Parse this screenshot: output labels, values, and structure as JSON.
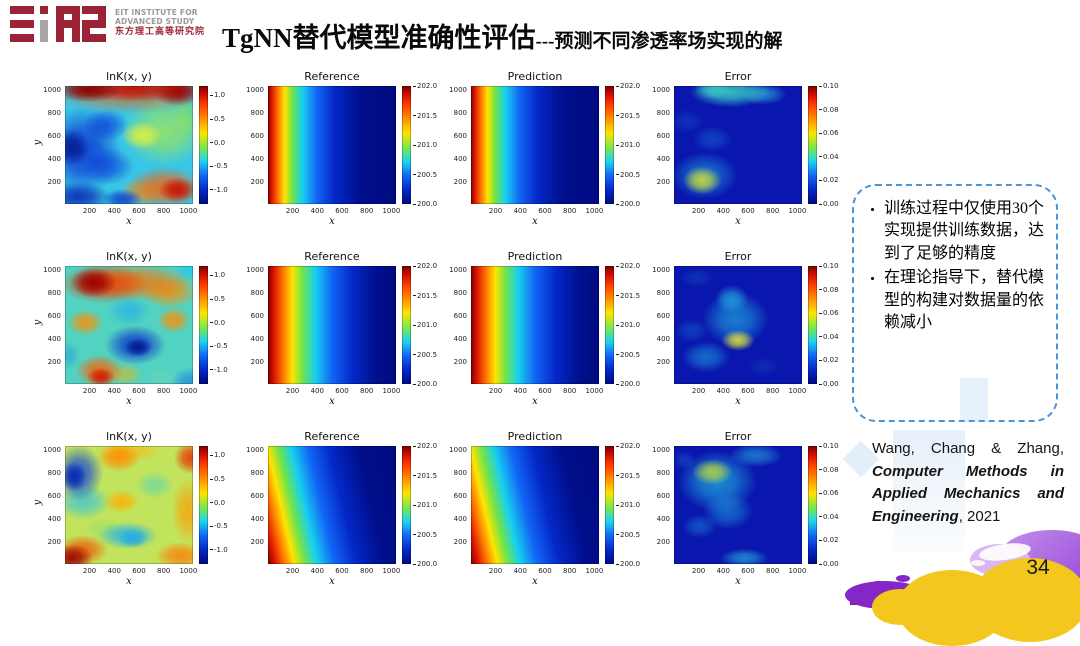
{
  "slide": {
    "logo": {
      "en_line1": "EIT INSTITUTE FOR",
      "en_line2": "ADVANCED STUDY",
      "cn": "东方理工高等研究院",
      "color_red": "#9b2335",
      "color_gray": "#9a9a9a"
    },
    "title": {
      "main": "TgNN替代模型准确性评估",
      "sub": "---预测不同渗透率场实现的解"
    },
    "notes": {
      "border_color": "#4a95d8",
      "bullets": [
        "训练过程中仅使用30个实现提供训练数据，达到了足够的精度",
        "在理论指导下，替代模型的构建对数据量的依赖减小"
      ]
    },
    "citation": {
      "authors": "Wang, Chang & Zhang,",
      "journal": "Computer Methods in Applied Mechanics and Engineering",
      "year": ", 2021"
    },
    "page_number": "34",
    "decoration_colors": {
      "cloud_yellow": "#f3c71d",
      "cloud_purple": "#9747d8",
      "wave_purple": "#8426c8"
    }
  },
  "chart_data": {
    "type": "heatmap",
    "grid": {
      "rows": 3,
      "cols": 4
    },
    "column_titles": [
      "lnK(x, y)",
      "Reference",
      "Prediction",
      "Error"
    ],
    "xlabel": "x",
    "ylabel": "y",
    "x_ticks": [
      200,
      400,
      600,
      800,
      1000
    ],
    "y_ticks": [
      1000,
      800,
      600,
      400,
      200
    ],
    "axis_range": [
      0,
      1024
    ],
    "colorbars": {
      "lnk": {
        "labels": [
          "1.0",
          "0.5",
          "0.0",
          "-0.5",
          "-1.0"
        ],
        "pos": [
          8,
          28,
          48,
          68,
          88
        ]
      },
      "pressure": {
        "labels": [
          "202.0",
          "201.5",
          "201.0",
          "200.5",
          "200.0"
        ],
        "pos": [
          0,
          25,
          50,
          75,
          100
        ]
      },
      "error": {
        "labels": [
          "0.10",
          "0.08",
          "0.06",
          "0.04",
          "0.02",
          "0.00"
        ],
        "pos": [
          0,
          20,
          40,
          60,
          80,
          100
        ]
      }
    },
    "gradients": {
      "p1": {
        "angle": 90,
        "stops": [
          [
            "#7a0000",
            0
          ],
          [
            "#e01800",
            3
          ],
          [
            "#ff7a00",
            8
          ],
          [
            "#ffe400",
            13
          ],
          [
            "#6fe44a",
            19
          ],
          [
            "#17d0f0",
            27
          ],
          [
            "#1266f5",
            38
          ],
          [
            "#0428c8",
            52
          ],
          [
            "#000f8c",
            72
          ],
          [
            "#000a80",
            100
          ]
        ]
      },
      "p2": {
        "angle": 90,
        "stops": [
          [
            "#7a0000",
            0
          ],
          [
            "#e01800",
            5
          ],
          [
            "#ff7a00",
            12
          ],
          [
            "#ffe400",
            19
          ],
          [
            "#6fe44a",
            27
          ],
          [
            "#17d0f0",
            37
          ],
          [
            "#1266f5",
            50
          ],
          [
            "#0428c8",
            66
          ],
          [
            "#000f8c",
            85
          ],
          [
            "#000a80",
            100
          ]
        ]
      },
      "p3": {
        "angle": 77,
        "stops": [
          [
            "#7a0000",
            0
          ],
          [
            "#e01800",
            5
          ],
          [
            "#ff7a00",
            11
          ],
          [
            "#ffe400",
            17
          ],
          [
            "#6fe44a",
            24
          ],
          [
            "#17d0f0",
            32
          ],
          [
            "#1266f5",
            43
          ],
          [
            "#0428c8",
            57
          ],
          [
            "#000f8c",
            75
          ],
          [
            "#000a80",
            100
          ]
        ]
      }
    },
    "panels": [
      {
        "row": 0,
        "col": 0,
        "title": "lnK(x, y)",
        "cbar": "lnk",
        "field": {
          "base": "#38c6e6",
          "blobs": [
            [
              18,
              3,
              26,
              11,
              "#8f0000",
              1
            ],
            [
              55,
              2,
              45,
              12,
              "#c41000",
              0.95
            ],
            [
              88,
              4,
              20,
              13,
              "#9a0000",
              1
            ],
            [
              50,
              8,
              60,
              16,
              "#ff5a00",
              0.55
            ],
            [
              60,
              42,
              16,
              12,
              "#e6f23c",
              0.85
            ],
            [
              78,
              38,
              34,
              30,
              "#a8e84e",
              0.75
            ],
            [
              95,
              25,
              12,
              18,
              "#7ddc55",
              0.6
            ],
            [
              5,
              52,
              14,
              16,
              "#041a8a",
              0.9
            ],
            [
              14,
              55,
              30,
              38,
              "#0a2ed2",
              0.85
            ],
            [
              32,
              33,
              18,
              14,
              "#0f42dc",
              0.75
            ],
            [
              34,
              68,
              20,
              16,
              "#0f42dc",
              0.7
            ],
            [
              10,
              94,
              26,
              13,
              "#0a28b4",
              0.9
            ],
            [
              45,
              96,
              16,
              9,
              "#0c30c8",
              0.8
            ],
            [
              88,
              88,
              15,
              11,
              "#c81200",
              0.95
            ],
            [
              78,
              86,
              30,
              18,
              "#ff5f00",
              0.8
            ],
            [
              60,
              90,
              18,
              12,
              "#ff9a00",
              0.55
            ]
          ]
        }
      },
      {
        "row": 0,
        "col": 1,
        "title": "Reference",
        "cbar": "pressure",
        "field": {
          "grad": "p1"
        }
      },
      {
        "row": 0,
        "col": 2,
        "title": "Prediction",
        "cbar": "pressure",
        "field": {
          "grad": "p1"
        }
      },
      {
        "row": 0,
        "col": 3,
        "title": "Error",
        "cbar": "error",
        "field": {
          "base": "#0a17ae",
          "blobs": [
            [
              44,
              5,
              32,
              13,
              "#3cd8c8",
              0.85
            ],
            [
              70,
              7,
              18,
              9,
              "#2cc0e0",
              0.6
            ],
            [
              30,
              3,
              14,
              8,
              "#48e0c0",
              0.6
            ],
            [
              22,
              80,
              15,
              12,
              "#ccdf3a",
              0.9
            ],
            [
              24,
              76,
              26,
              20,
              "#1ea8e0",
              0.6
            ],
            [
              30,
              45,
              16,
              11,
              "#1668d4",
              0.5
            ],
            [
              10,
              30,
              13,
              10,
              "#1350c4",
              0.45
            ]
          ]
        }
      },
      {
        "row": 1,
        "col": 0,
        "title": "lnK(x, y)",
        "cbar": "lnk",
        "field": {
          "base": "#52d2c0",
          "blobs": [
            [
              22,
              14,
              18,
              13,
              "#9c0000",
              1
            ],
            [
              30,
              15,
              34,
              17,
              "#e83800",
              0.8
            ],
            [
              55,
              14,
              45,
              16,
              "#ff7000",
              0.8
            ],
            [
              82,
              22,
              22,
              14,
              "#ff8c00",
              0.75
            ],
            [
              97,
              3,
              12,
              9,
              "#28c8e8",
              0.9
            ],
            [
              16,
              48,
              14,
              11,
              "#ff9000",
              0.85
            ],
            [
              85,
              46,
              13,
              11,
              "#ff9000",
              0.85
            ],
            [
              50,
              38,
              17,
              13,
              "#2ab4e4",
              0.8
            ],
            [
              57,
              69,
              11,
              8,
              "#03188c",
              0.95
            ],
            [
              55,
              67,
              24,
              17,
              "#0a2ed2",
              0.85
            ],
            [
              28,
              94,
              11,
              8,
              "#d01800",
              0.95
            ],
            [
              27,
              89,
              19,
              14,
              "#ff6000",
              0.85
            ],
            [
              47,
              92,
              14,
              10,
              "#ffb400",
              0.5
            ],
            [
              99,
              98,
              16,
              12,
              "#1e8ce0",
              0.8
            ],
            [
              2,
              76,
              10,
              12,
              "#2aa0dc",
              0.6
            ],
            [
              75,
              95,
              14,
              8,
              "#6fd6b4",
              0.5
            ]
          ]
        }
      },
      {
        "row": 1,
        "col": 1,
        "title": "Reference",
        "cbar": "pressure",
        "field": {
          "grad": "p2"
        }
      },
      {
        "row": 1,
        "col": 2,
        "title": "Prediction",
        "cbar": "pressure",
        "field": {
          "grad": "p2"
        }
      },
      {
        "row": 1,
        "col": 3,
        "title": "Error",
        "cbar": "error",
        "field": {
          "base": "#0a17ae",
          "blobs": [
            [
              50,
              63,
              13,
              9,
              "#dce23c",
              0.9
            ],
            [
              48,
              45,
              26,
              23,
              "#1fa8e0",
              0.7
            ],
            [
              45,
              28,
              13,
              12,
              "#2cc0e4",
              0.65
            ],
            [
              25,
              77,
              19,
              13,
              "#1e9ede",
              0.6
            ],
            [
              14,
              55,
              13,
              10,
              "#1560c8",
              0.5
            ],
            [
              18,
              10,
              13,
              8,
              "#134cc0",
              0.45
            ],
            [
              70,
              85,
              12,
              8,
              "#1346bc",
              0.4
            ]
          ]
        }
      },
      {
        "row": 2,
        "col": 0,
        "title": "lnK(x, y)",
        "cbar": "lnk",
        "field": {
          "base": "#c2e45c",
          "blobs": [
            [
              7,
              26,
              10,
              13,
              "#0726b0",
              0.95
            ],
            [
              11,
              23,
              19,
              24,
              "#1246da",
              0.85
            ],
            [
              14,
              47,
              22,
              16,
              "#2cc0e0",
              0.7
            ],
            [
              42,
              10,
              17,
              12,
              "#ff8c00",
              0.9
            ],
            [
              50,
              4,
              26,
              9,
              "#ffb000",
              0.6
            ],
            [
              98,
              10,
              13,
              14,
              "#e63000",
              0.85
            ],
            [
              96,
              55,
              13,
              28,
              "#ff9800",
              0.7
            ],
            [
              70,
              33,
              15,
              12,
              "#62d8a8",
              0.7
            ],
            [
              44,
              47,
              14,
              10,
              "#ffae00",
              0.85
            ],
            [
              49,
              76,
              24,
              12,
              "#28b4e6",
              0.9
            ],
            [
              53,
              78,
              12,
              8,
              "#128cd8",
              0.85
            ],
            [
              5,
              95,
              17,
              12,
              "#9e0000",
              0.95
            ],
            [
              14,
              88,
              20,
              13,
              "#f25000",
              0.8
            ],
            [
              90,
              93,
              20,
              12,
              "#ff7a00",
              0.8
            ],
            [
              30,
              70,
              16,
              10,
              "#8cdc6e",
              0.5
            ]
          ]
        }
      },
      {
        "row": 2,
        "col": 1,
        "title": "Reference",
        "cbar": "pressure",
        "field": {
          "grad": "p3"
        }
      },
      {
        "row": 2,
        "col": 2,
        "title": "Prediction",
        "cbar": "pressure",
        "field": {
          "grad": "p3"
        }
      },
      {
        "row": 2,
        "col": 3,
        "title": "Error",
        "cbar": "error",
        "field": {
          "base": "#0a17ae",
          "blobs": [
            [
              30,
              22,
              16,
              11,
              "#b8d83c",
              0.85
            ],
            [
              34,
              30,
              31,
              26,
              "#1fb0e0",
              0.75
            ],
            [
              42,
              55,
              20,
              16,
              "#1e9ade",
              0.6
            ],
            [
              64,
              8,
              21,
              10,
              "#28aede",
              0.6
            ],
            [
              55,
              95,
              19,
              8,
              "#28aede",
              0.7
            ],
            [
              8,
              12,
              9,
              8,
              "#1560c8",
              0.45
            ],
            [
              20,
              68,
              14,
              10,
              "#1a86d4",
              0.5
            ]
          ]
        }
      }
    ]
  }
}
